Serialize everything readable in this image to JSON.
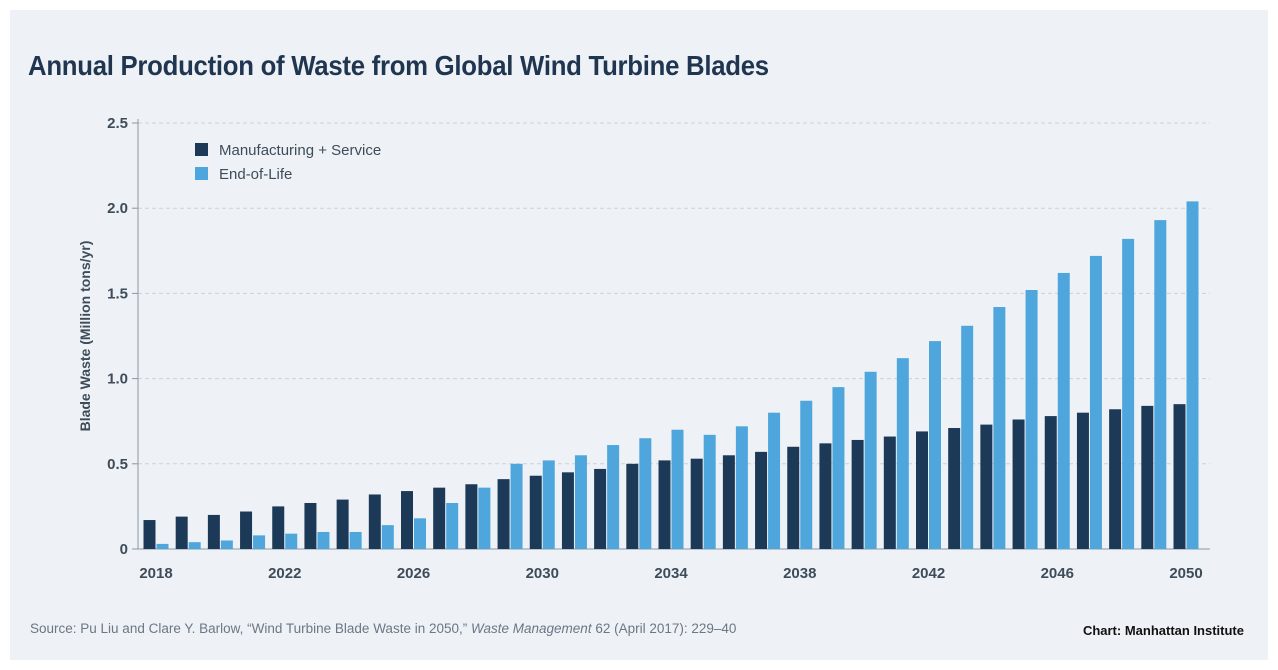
{
  "chart_data": {
    "type": "bar",
    "title": "Annual Production of Waste from Global Wind Turbine Blades",
    "ylabel": "Blade Waste (Million tons/yr)",
    "xlabel": "",
    "ylim": [
      0,
      2.5
    ],
    "yticks": [
      "0",
      "0.5",
      "1.0",
      "1.5",
      "2.0",
      "2.5"
    ],
    "categories": [
      2018,
      2019,
      2020,
      2021,
      2022,
      2023,
      2024,
      2025,
      2026,
      2027,
      2028,
      2029,
      2030,
      2031,
      2032,
      2033,
      2034,
      2035,
      2036,
      2037,
      2038,
      2039,
      2040,
      2041,
      2042,
      2043,
      2044,
      2045,
      2046,
      2047,
      2048,
      2049,
      2050
    ],
    "xtick_labels": [
      "2018",
      "2022",
      "2026",
      "2030",
      "2034",
      "2038",
      "2042",
      "2046",
      "2050"
    ],
    "legend_position": "top-left",
    "grid": "horizontal dashed",
    "series": [
      {
        "name": "Manufacturing + Service",
        "color": "#1c3a57",
        "values": [
          0.17,
          0.19,
          0.2,
          0.22,
          0.25,
          0.27,
          0.29,
          0.32,
          0.34,
          0.36,
          0.38,
          0.41,
          0.43,
          0.45,
          0.47,
          0.5,
          0.52,
          0.53,
          0.55,
          0.57,
          0.6,
          0.62,
          0.64,
          0.66,
          0.69,
          0.71,
          0.73,
          0.76,
          0.78,
          0.8,
          0.82,
          0.84,
          0.85
        ]
      },
      {
        "name": "End-of-Life",
        "color": "#4ea6dc",
        "values": [
          0.03,
          0.04,
          0.05,
          0.08,
          0.09,
          0.1,
          0.1,
          0.14,
          0.18,
          0.27,
          0.36,
          0.5,
          0.52,
          0.55,
          0.61,
          0.65,
          0.7,
          0.67,
          0.72,
          0.8,
          0.87,
          0.95,
          1.04,
          1.12,
          1.22,
          1.31,
          1.42,
          1.52,
          1.62,
          1.72,
          1.82,
          1.93,
          2.04
        ]
      }
    ]
  },
  "footer": {
    "source_prefix": "Source: Pu Liu and Clare Y. Barlow, “Wind Turbine Blade Waste in 2050,” ",
    "source_journal": "Waste Management",
    "source_suffix": " 62 (April 2017): 229–40",
    "credit": "Chart: Manhattan Institute"
  }
}
